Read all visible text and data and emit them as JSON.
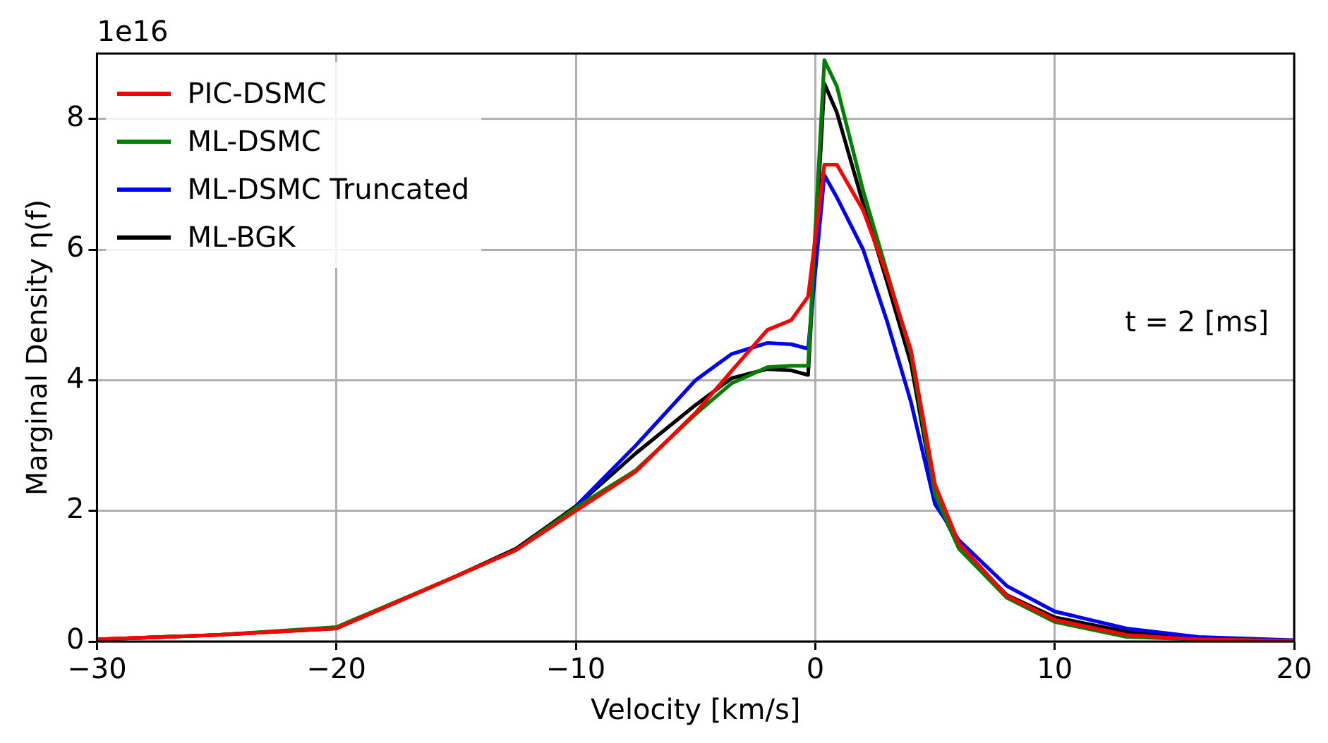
{
  "chart_data": {
    "type": "line",
    "xlabel": "Velocity [km/s]",
    "ylabel": "Marginal Density η(f)",
    "x": [
      -30,
      -25,
      -20,
      -15,
      -12.5,
      -10,
      -7.5,
      -5,
      -3.5,
      -2,
      -1,
      -0.3,
      0.38,
      0.9,
      2,
      3,
      4,
      5,
      6,
      8,
      10,
      13,
      16,
      20
    ],
    "series": [
      {
        "name": "PIC-DSMC",
        "color": "#ff0000",
        "values": [
          0.03,
          0.1,
          0.2,
          1.0,
          1.4,
          2.0,
          2.6,
          3.5,
          4.14,
          4.77,
          4.92,
          5.28,
          7.3,
          7.3,
          6.6,
          5.6,
          4.45,
          2.4,
          1.5,
          0.7,
          0.33,
          0.1,
          0.03,
          0.01
        ]
      },
      {
        "name": "ML-DSMC",
        "color": "#008000",
        "values": [
          0.03,
          0.1,
          0.22,
          1.0,
          1.4,
          2.05,
          2.62,
          3.48,
          3.95,
          4.2,
          4.22,
          4.22,
          8.9,
          8.5,
          6.9,
          5.65,
          4.4,
          2.25,
          1.42,
          0.67,
          0.3,
          0.07,
          0.03,
          0.01
        ]
      },
      {
        "name": "ML-DSMC Truncated",
        "color": "#0000ff",
        "values": [
          null,
          null,
          null,
          null,
          null,
          2.07,
          3.0,
          4.0,
          4.4,
          4.57,
          4.55,
          4.48,
          7.14,
          6.8,
          6.0,
          4.9,
          3.66,
          2.1,
          1.55,
          0.85,
          0.46,
          0.2,
          0.07,
          0.02
        ]
      },
      {
        "name": "ML-BGK",
        "color": "#000000",
        "values": [
          0.03,
          0.1,
          0.2,
          1.0,
          1.42,
          2.07,
          2.88,
          3.62,
          4.03,
          4.17,
          4.15,
          4.08,
          8.54,
          8.1,
          6.7,
          5.5,
          4.25,
          2.2,
          1.44,
          0.71,
          0.37,
          0.15,
          0.05,
          0.01
        ]
      }
    ],
    "xlim": [
      -30,
      20
    ],
    "xticks": [
      -30,
      -20,
      -10,
      0,
      10,
      20
    ],
    "ylim": [
      0,
      9
    ],
    "yticks": [
      0,
      2,
      4,
      6,
      8
    ],
    "grid": true,
    "legend": "top left",
    "marker": "none",
    "line_style": "solid",
    "annotations": [
      "1e16",
      "t = 2 [ms]"
    ]
  }
}
